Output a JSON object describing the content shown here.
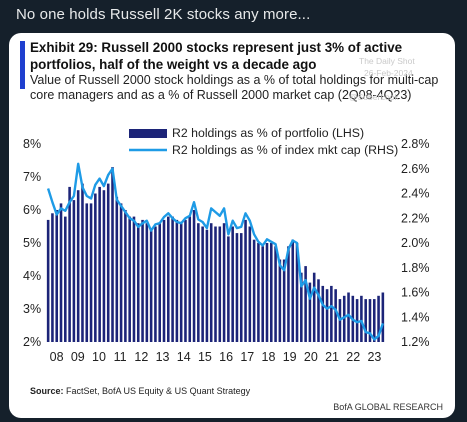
{
  "post": {
    "text": "No one holds Russell 2K stocks any more..."
  },
  "exhibit": {
    "title": "Exhibit 29: Russell 2000 stocks represent just 3% of active portfolios, half of the weight vs a decade ago",
    "subtitle": "Value of Russell 2000 stock holdings as a % of total holdings for multi-cap core managers and as a % of Russell 2000 market cap (2Q08-4Q23)",
    "source_label": "Source:",
    "source_text": " FactSet, BofA US Equity & US Quant Strategy",
    "footer": "BofA GLOBAL RESEARCH"
  },
  "watermark": {
    "line1": "The Daily Shot",
    "line2": "26-Feb-2024",
    "line3": "@SoberLook"
  },
  "colors": {
    "bar": "#1c2478",
    "line": "#1e9be6",
    "accent": "#1f3fcf"
  },
  "chart_data": {
    "type": "bar",
    "x_tick_labels": [
      "08",
      "09",
      "10",
      "11",
      "12",
      "13",
      "14",
      "15",
      "16",
      "17",
      "18",
      "19",
      "20",
      "21",
      "22",
      "23"
    ],
    "ylim_left": [
      2,
      8
    ],
    "ylim_right": [
      1.2,
      2.8
    ],
    "left_ticks": [
      "8%",
      "7%",
      "6%",
      "5%",
      "4%",
      "3%",
      "2%"
    ],
    "right_ticks": [
      "2.8%",
      "2.6%",
      "2.4%",
      "2.2%",
      "2.0%",
      "1.8%",
      "1.6%",
      "1.4%",
      "1.2%"
    ],
    "series": [
      {
        "name": "R2 holdings as % of portfolio (LHS)",
        "type": "bar",
        "axis": "left",
        "values": [
          5.7,
          5.9,
          6.0,
          6.2,
          5.8,
          6.7,
          6.3,
          6.6,
          6.8,
          6.2,
          6.2,
          6.5,
          6.7,
          6.6,
          6.8,
          7.3,
          6.4,
          6.2,
          6.0,
          5.8,
          5.8,
          5.6,
          5.7,
          5.6,
          5.4,
          5.5,
          5.6,
          5.7,
          5.8,
          5.8,
          5.7,
          5.6,
          5.7,
          5.8,
          6.0,
          5.6,
          5.5,
          5.4,
          5.6,
          5.5,
          5.5,
          5.6,
          5.2,
          5.5,
          5.3,
          5.3,
          5.7,
          5.5,
          5.1,
          5.0,
          4.9,
          5.0,
          5.0,
          4.9,
          4.5,
          4.5,
          4.9,
          5.1,
          5.0,
          4.1,
          4.3,
          3.8,
          4.1,
          3.9,
          3.7,
          3.6,
          3.7,
          3.6,
          3.3,
          3.4,
          3.5,
          3.4,
          3.3,
          3.4,
          3.3,
          3.3,
          3.3,
          3.4,
          3.5
        ]
      },
      {
        "name": "R2 holdings as % of index mkt cap (RHS)",
        "type": "line",
        "axis": "right",
        "values": [
          2.44,
          2.33,
          2.23,
          2.28,
          2.26,
          2.33,
          2.38,
          2.64,
          2.45,
          2.38,
          2.36,
          2.47,
          2.52,
          2.46,
          2.55,
          2.6,
          2.35,
          2.3,
          2.25,
          2.2,
          2.18,
          2.13,
          2.16,
          2.18,
          2.1,
          2.15,
          2.16,
          2.21,
          2.24,
          2.2,
          2.17,
          2.16,
          2.2,
          2.22,
          2.33,
          2.19,
          2.17,
          2.12,
          2.28,
          2.25,
          2.22,
          2.28,
          2.07,
          2.18,
          2.12,
          2.13,
          2.24,
          2.18,
          2.07,
          2.01,
          1.98,
          2.03,
          2.01,
          1.99,
          1.82,
          1.78,
          1.95,
          2.02,
          2.0,
          1.65,
          1.7,
          1.55,
          1.64,
          1.58,
          1.5,
          1.47,
          1.49,
          1.46,
          1.38,
          1.4,
          1.42,
          1.38,
          1.36,
          1.37,
          1.28,
          1.27,
          1.22,
          1.25,
          1.35
        ]
      }
    ]
  }
}
